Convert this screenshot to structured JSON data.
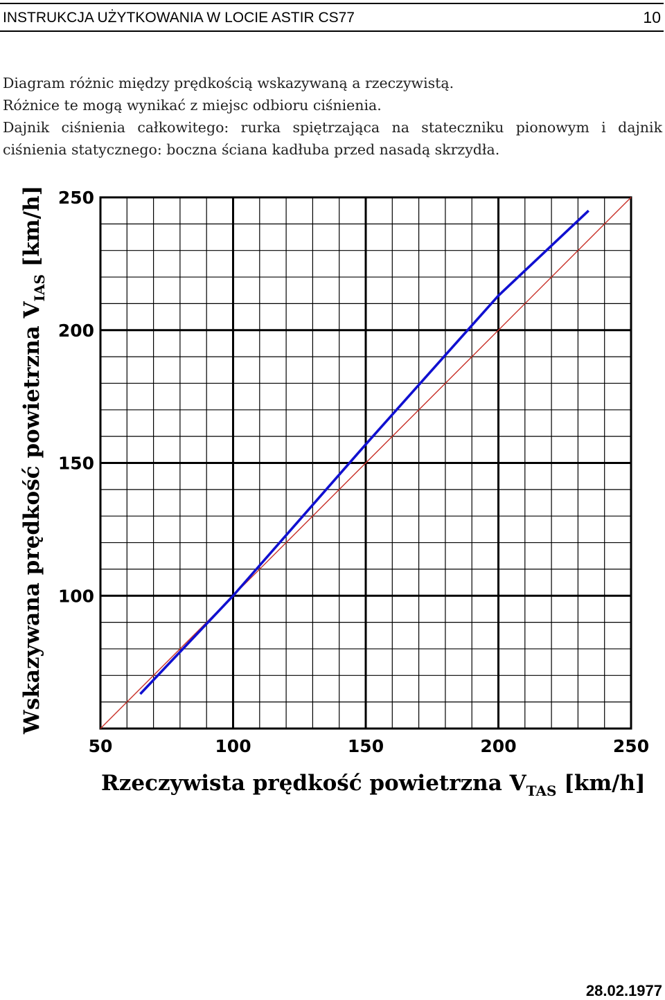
{
  "header": {
    "title": "INSTRUKCJA UŻYTKOWANIA W LOCIE  ASTIR CS77",
    "page_number": "10"
  },
  "intro": {
    "line1": "Diagram różnic między prędkością wskazywaną a rzeczywistą.",
    "line2": "Różnice te mogą wynikać z miejsc odbioru ciśnienia.",
    "line3": "Dajnik ciśnienia całkowitego: rurka spiętrzająca na stateczniku pionowym i dajnik ciśnienia statycznego: boczna ściana kadłuba przed nasadą skrzydła."
  },
  "chart_data": {
    "type": "line",
    "xlabel": {
      "main": "Rzeczywista prędkość powietrzna V",
      "sub": "TAS",
      "unit": " [km/h]"
    },
    "ylabel": {
      "main": "Wskazywana prędkość powietrzna V",
      "sub": "IAS",
      "unit": " [km/h]"
    },
    "xlim": [
      50,
      250
    ],
    "ylim": [
      50,
      250
    ],
    "x_ticks": [
      50,
      100,
      150,
      200,
      250
    ],
    "x_tick_labels": [
      "50",
      "100",
      "150",
      "200",
      "250"
    ],
    "y_ticks": [
      100,
      150,
      200,
      250
    ],
    "y_tick_labels": [
      "100",
      "150",
      "200",
      "250"
    ],
    "grid": true,
    "grid_minor_step": 10,
    "grid_major_step": 50,
    "series": [
      {
        "role": "calibration",
        "color": "#1010d0",
        "x": [
          65,
          100,
          150,
          200,
          234
        ],
        "y": [
          63,
          100,
          157,
          213,
          245
        ]
      },
      {
        "role": "reference",
        "color": "#c83028",
        "x": [
          50,
          250
        ],
        "y": [
          50,
          250
        ]
      }
    ]
  },
  "footer": {
    "date": "28.02.1977"
  }
}
